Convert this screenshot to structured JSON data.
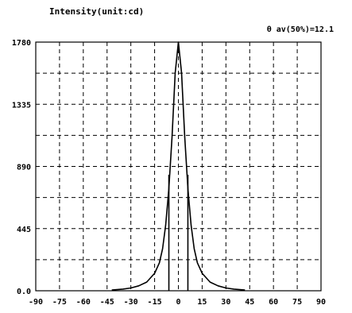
{
  "chart_data": {
    "type": "line",
    "title": "Intensity(unit:cd)",
    "annotation": "θ av(50%)=12.1",
    "xlabel": "",
    "ylabel": "",
    "xlim": [
      -90,
      90
    ],
    "ylim": [
      0,
      1780
    ],
    "x_ticks": [
      "-90",
      "-75",
      "-60",
      "-45",
      "-30",
      "-15",
      "0",
      "15",
      "30",
      "45",
      "60",
      "75",
      "90"
    ],
    "y_ticks": [
      "0.0",
      "445",
      "890",
      "1335",
      "1780"
    ],
    "grid": true,
    "grid_style": "dashed",
    "legend": "none",
    "series": [
      {
        "x": [
          -42,
          -35,
          -30,
          -25,
          -20,
          -15,
          -12,
          -10,
          -8,
          -6,
          -4,
          -2,
          0,
          2,
          4,
          6,
          8,
          10,
          12,
          15,
          20,
          25,
          30,
          35,
          42
        ],
        "values": [
          5,
          12,
          20,
          35,
          62,
          125,
          200,
          300,
          470,
          730,
          1100,
          1560,
          1780,
          1560,
          1100,
          730,
          470,
          300,
          200,
          125,
          62,
          35,
          20,
          12,
          5
        ]
      }
    ],
    "half_max_markers_x": [
      -6,
      6
    ],
    "colors": {
      "line": "#000000",
      "grid": "#000000",
      "frame": "#000000",
      "background": "#ffffff"
    }
  }
}
